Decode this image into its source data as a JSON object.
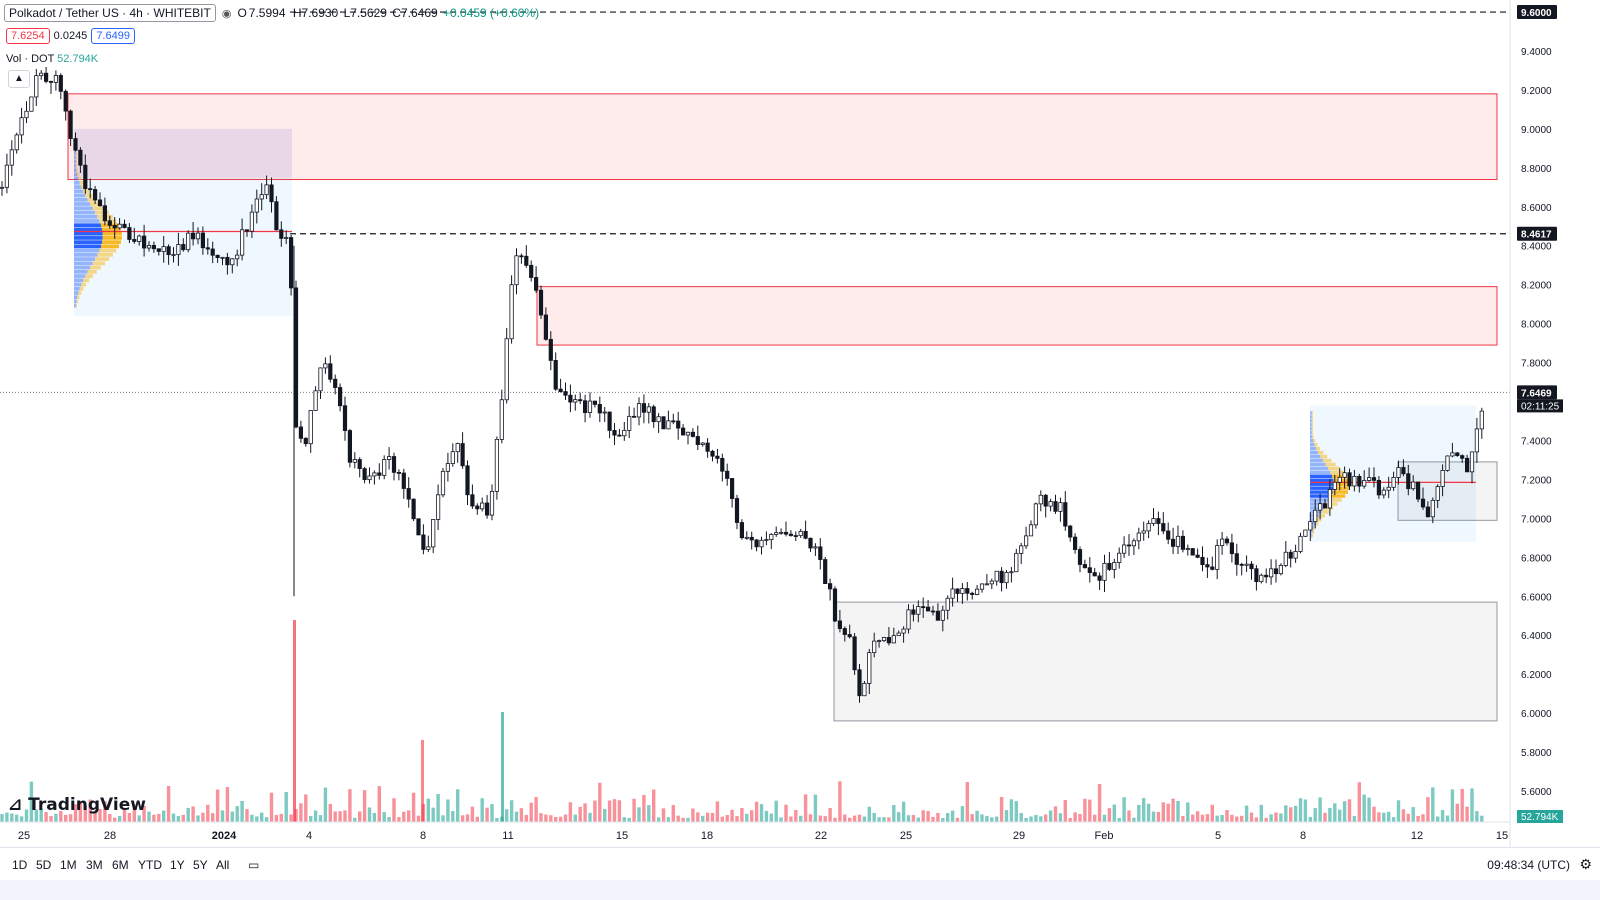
{
  "header": {
    "symbol_title": "Polkadot / Tether US · 4h · WHITEBIT",
    "ohlc": {
      "o": "7.5994",
      "h": "H7.6930",
      "l": "L7.5629",
      "c": "C7.6469",
      "chg": "+0.0459 (+0.60%)"
    },
    "open_prefix": "O"
  },
  "quotes": {
    "bid": "7.6254",
    "spread": "0.0245",
    "ask": "7.6499"
  },
  "volume_legend": {
    "label": "Vol · DOT",
    "value": "52.794K"
  },
  "price_axis": {
    "ticks": [
      "9.4000",
      "9.2000",
      "9.0000",
      "8.8000",
      "8.6000",
      "8.4000",
      "8.2000",
      "8.0000",
      "7.8000",
      "7.4000",
      "7.2000",
      "7.0000",
      "6.8000",
      "6.6000",
      "6.4000",
      "6.2000",
      "6.0000",
      "5.8000",
      "5.6000"
    ],
    "tick_values": [
      9.4,
      9.2,
      9.0,
      8.8,
      8.6,
      8.4,
      8.2,
      8.0,
      7.8,
      7.4,
      7.2,
      7.0,
      6.8,
      6.6,
      6.4,
      6.2,
      6.0,
      5.8,
      5.6
    ],
    "label_top": "9.6000",
    "label_mid": "8.4617",
    "label_last": "7.6469",
    "label_countdown": "02:11:25",
    "label_vol": "52.794K"
  },
  "time_axis": {
    "labels": [
      "25",
      "28",
      "2024",
      "4",
      "8",
      "11",
      "15",
      "18",
      "22",
      "25",
      "29",
      "Feb",
      "5",
      "8",
      "12",
      "15"
    ]
  },
  "bottom_bar": {
    "timeframes": [
      "1D",
      "5D",
      "1M",
      "3M",
      "6M",
      "YTD",
      "1Y",
      "5Y",
      "All"
    ],
    "clock": "09:48:34 (UTC)"
  },
  "logo": "TradingView",
  "colors": {
    "up": "#26a69a",
    "down": "#131722",
    "supply_zone": "#f23645",
    "demand_zone": "#9598a1",
    "accent": "#2962ff"
  },
  "chart_data": {
    "type": "candlestick",
    "title": "Polkadot / Tether US · 4h · WHITEBIT",
    "ylim": [
      5.45,
      9.65
    ],
    "levels": [
      9.6,
      8.4617,
      7.6469
    ],
    "zones": [
      {
        "kind": "supply",
        "from": 8.74,
        "to": 9.18
      },
      {
        "kind": "supply",
        "from": 7.89,
        "to": 8.19
      },
      {
        "kind": "demand",
        "from": 5.96,
        "to": 6.57
      }
    ],
    "price_path": [
      [
        0,
        8.7
      ],
      [
        10,
        8.9
      ],
      [
        25,
        9.1
      ],
      [
        40,
        9.3
      ],
      [
        55,
        9.25
      ],
      [
        70,
        9.0
      ],
      [
        85,
        8.7
      ],
      [
        100,
        8.6
      ],
      [
        115,
        8.5
      ],
      [
        130,
        8.45
      ],
      [
        150,
        8.4
      ],
      [
        170,
        8.35
      ],
      [
        190,
        8.45
      ],
      [
        210,
        8.4
      ],
      [
        230,
        8.3
      ],
      [
        250,
        8.55
      ],
      [
        265,
        8.7
      ],
      [
        280,
        8.45
      ],
      [
        290,
        8.4
      ],
      [
        295,
        7.5
      ],
      [
        305,
        7.4
      ],
      [
        320,
        7.8
      ],
      [
        335,
        7.7
      ],
      [
        350,
        7.3
      ],
      [
        370,
        7.2
      ],
      [
        390,
        7.3
      ],
      [
        410,
        7.1
      ],
      [
        425,
        6.8
      ],
      [
        440,
        7.2
      ],
      [
        455,
        7.4
      ],
      [
        470,
        7.1
      ],
      [
        490,
        7.0
      ],
      [
        505,
        7.8
      ],
      [
        515,
        8.4
      ],
      [
        525,
        8.3
      ],
      [
        540,
        8.1
      ],
      [
        555,
        7.7
      ],
      [
        575,
        7.6
      ],
      [
        600,
        7.55
      ],
      [
        620,
        7.4
      ],
      [
        640,
        7.6
      ],
      [
        660,
        7.5
      ],
      [
        680,
        7.45
      ],
      [
        700,
        7.4
      ],
      [
        720,
        7.3
      ],
      [
        740,
        6.95
      ],
      [
        760,
        6.85
      ],
      [
        780,
        6.9
      ],
      [
        800,
        6.9
      ],
      [
        820,
        6.8
      ],
      [
        835,
        6.5
      ],
      [
        850,
        6.4
      ],
      [
        860,
        6.1
      ],
      [
        875,
        6.4
      ],
      [
        890,
        6.4
      ],
      [
        910,
        6.5
      ],
      [
        925,
        6.55
      ],
      [
        940,
        6.5
      ],
      [
        955,
        6.65
      ],
      [
        970,
        6.6
      ],
      [
        990,
        6.7
      ],
      [
        1010,
        6.7
      ],
      [
        1025,
        6.9
      ],
      [
        1040,
        7.1
      ],
      [
        1060,
        7.05
      ],
      [
        1080,
        6.8
      ],
      [
        1100,
        6.7
      ],
      [
        1115,
        6.8
      ],
      [
        1130,
        6.85
      ],
      [
        1150,
        7.0
      ],
      [
        1170,
        6.9
      ],
      [
        1190,
        6.85
      ],
      [
        1210,
        6.75
      ],
      [
        1225,
        6.9
      ],
      [
        1240,
        6.75
      ],
      [
        1260,
        6.7
      ],
      [
        1275,
        6.75
      ],
      [
        1290,
        6.8
      ],
      [
        1305,
        6.95
      ],
      [
        1320,
        7.05
      ],
      [
        1340,
        7.2
      ],
      [
        1360,
        7.2
      ],
      [
        1380,
        7.15
      ],
      [
        1400,
        7.25
      ],
      [
        1420,
        7.1
      ],
      [
        1430,
        7.0
      ],
      [
        1445,
        7.3
      ],
      [
        1460,
        7.3
      ],
      [
        1470,
        7.25
      ],
      [
        1480,
        7.55
      ],
      [
        1485,
        7.6469
      ]
    ]
  }
}
